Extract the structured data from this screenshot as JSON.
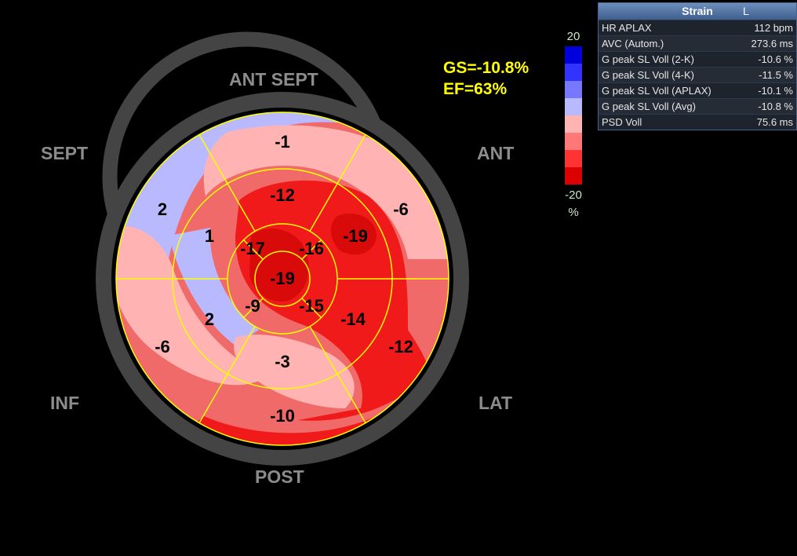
{
  "walls": {
    "ant_sept": "ANT  SEPT",
    "sept": "SEPT",
    "ant": "ANT",
    "inf": "INF",
    "lat": "LAT",
    "post": "POST"
  },
  "summary": {
    "gs": "GS=-10.8%",
    "ef": "EF=63%"
  },
  "scale": {
    "max": "20",
    "min": "-20",
    "unit": "%",
    "colors": [
      "#0000dd",
      "#3333ff",
      "#7777ff",
      "#b9b9ff",
      "#ffb3b3",
      "#ff7777",
      "#ff3333",
      "#dd0000"
    ]
  },
  "panel": {
    "title": "Strain",
    "title_glyph": "L",
    "rows": [
      {
        "label": "HR APLAX",
        "value": "112 bpm"
      },
      {
        "label": "AVC (Autom.)",
        "value": "273.6 ms"
      },
      {
        "label": "G peak SL Voll (2-K)",
        "value": "-10.6 %"
      },
      {
        "label": "G peak SL Voll (4-K)",
        "value": "-11.5 %"
      },
      {
        "label": "G peak SL Voll (APLAX)",
        "value": "-10.1 %"
      },
      {
        "label": "G peak SL Voll (Avg)",
        "value": "-10.8 %"
      },
      {
        "label": "PSD Voll",
        "value": "75.6 ms"
      }
    ]
  },
  "segments": {
    "basal": [
      "-1",
      "-6",
      "-12",
      "-10",
      "-6",
      "2"
    ],
    "mid": [
      "-12",
      "-19",
      "-14",
      "-3",
      "2",
      "1"
    ],
    "apical": [
      "-16",
      "-15",
      "-9",
      "-17"
    ],
    "apex": "-19"
  },
  "colors": {
    "ring": "#444444",
    "grid": "#ffff00",
    "strain_text": "#000000"
  }
}
